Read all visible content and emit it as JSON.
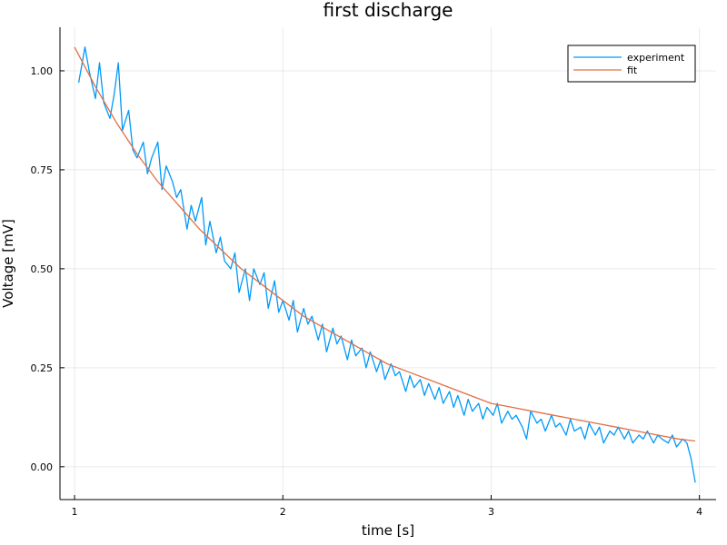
{
  "chart_data": {
    "type": "line",
    "title": "first discharge",
    "xlabel": "time [s]",
    "ylabel": "Voltage [mV]",
    "xlim": [
      0.93,
      4.08
    ],
    "ylim": [
      -0.083,
      1.11
    ],
    "x_ticks": [
      1,
      2,
      3,
      4
    ],
    "y_ticks": [
      0.0,
      0.25,
      0.5,
      0.75,
      1.0
    ],
    "x_tick_labels": [
      "1",
      "2",
      "3",
      "4"
    ],
    "y_tick_labels": [
      "0.00",
      "0.25",
      "0.50",
      "0.75",
      "1.00"
    ],
    "grid": true,
    "legend_position": "top-right",
    "series": [
      {
        "name": "experiment",
        "color": "#009af9",
        "x": [
          1.02,
          1.05,
          1.07,
          1.1,
          1.12,
          1.14,
          1.17,
          1.19,
          1.21,
          1.23,
          1.26,
          1.28,
          1.3,
          1.33,
          1.35,
          1.37,
          1.4,
          1.42,
          1.44,
          1.47,
          1.49,
          1.51,
          1.54,
          1.56,
          1.58,
          1.61,
          1.63,
          1.65,
          1.68,
          1.7,
          1.72,
          1.75,
          1.77,
          1.79,
          1.82,
          1.84,
          1.86,
          1.89,
          1.91,
          1.93,
          1.96,
          1.98,
          2.0,
          2.03,
          2.05,
          2.07,
          2.1,
          2.12,
          2.14,
          2.17,
          2.19,
          2.21,
          2.24,
          2.26,
          2.28,
          2.31,
          2.33,
          2.35,
          2.38,
          2.4,
          2.42,
          2.45,
          2.47,
          2.49,
          2.52,
          2.54,
          2.56,
          2.59,
          2.61,
          2.63,
          2.66,
          2.68,
          2.7,
          2.73,
          2.75,
          2.77,
          2.8,
          2.82,
          2.84,
          2.87,
          2.89,
          2.91,
          2.94,
          2.96,
          2.98,
          3.01,
          3.03,
          3.05,
          3.08,
          3.1,
          3.12,
          3.15,
          3.17,
          3.19,
          3.22,
          3.24,
          3.26,
          3.29,
          3.31,
          3.33,
          3.36,
          3.38,
          3.4,
          3.43,
          3.45,
          3.47,
          3.5,
          3.52,
          3.54,
          3.57,
          3.59,
          3.61,
          3.64,
          3.66,
          3.68,
          3.71,
          3.73,
          3.75,
          3.78,
          3.8,
          3.82,
          3.85,
          3.87,
          3.89,
          3.92,
          3.94,
          3.96,
          3.98
        ],
        "values": [
          0.97,
          1.06,
          1.0,
          0.93,
          1.02,
          0.92,
          0.88,
          0.94,
          1.02,
          0.85,
          0.9,
          0.8,
          0.78,
          0.82,
          0.74,
          0.78,
          0.82,
          0.7,
          0.76,
          0.72,
          0.68,
          0.7,
          0.6,
          0.66,
          0.62,
          0.68,
          0.56,
          0.62,
          0.54,
          0.58,
          0.52,
          0.5,
          0.54,
          0.44,
          0.5,
          0.42,
          0.5,
          0.46,
          0.49,
          0.4,
          0.47,
          0.39,
          0.42,
          0.37,
          0.42,
          0.34,
          0.4,
          0.36,
          0.38,
          0.32,
          0.36,
          0.29,
          0.35,
          0.31,
          0.33,
          0.27,
          0.32,
          0.28,
          0.3,
          0.25,
          0.29,
          0.24,
          0.27,
          0.22,
          0.26,
          0.23,
          0.24,
          0.19,
          0.23,
          0.2,
          0.22,
          0.18,
          0.21,
          0.17,
          0.2,
          0.16,
          0.19,
          0.15,
          0.18,
          0.13,
          0.17,
          0.14,
          0.16,
          0.12,
          0.15,
          0.13,
          0.16,
          0.11,
          0.14,
          0.12,
          0.13,
          0.1,
          0.07,
          0.14,
          0.11,
          0.12,
          0.09,
          0.13,
          0.1,
          0.11,
          0.08,
          0.12,
          0.09,
          0.1,
          0.07,
          0.11,
          0.08,
          0.1,
          0.06,
          0.09,
          0.08,
          0.1,
          0.07,
          0.09,
          0.06,
          0.08,
          0.07,
          0.09,
          0.06,
          0.08,
          0.07,
          0.06,
          0.08,
          0.05,
          0.07,
          0.06,
          0.02,
          -0.04
        ]
      },
      {
        "name": "fit",
        "color": "#e26f46",
        "x": [
          1.0,
          1.1,
          1.2,
          1.3,
          1.4,
          1.5,
          1.6,
          1.7,
          1.8,
          1.9,
          2.0,
          2.1,
          2.2,
          2.3,
          2.4,
          2.5,
          2.6,
          2.7,
          2.8,
          2.9,
          3.0,
          3.1,
          3.2,
          3.3,
          3.4,
          3.5,
          3.6,
          3.7,
          3.8,
          3.9,
          3.98
        ],
        "values": [
          1.06,
          0.96,
          0.87,
          0.79,
          0.72,
          0.66,
          0.6,
          0.55,
          0.5,
          0.46,
          0.42,
          0.38,
          0.35,
          0.32,
          0.29,
          0.26,
          0.24,
          0.22,
          0.2,
          0.18,
          0.16,
          0.15,
          0.14,
          0.13,
          0.12,
          0.11,
          0.1,
          0.09,
          0.08,
          0.07,
          0.065
        ]
      }
    ]
  }
}
